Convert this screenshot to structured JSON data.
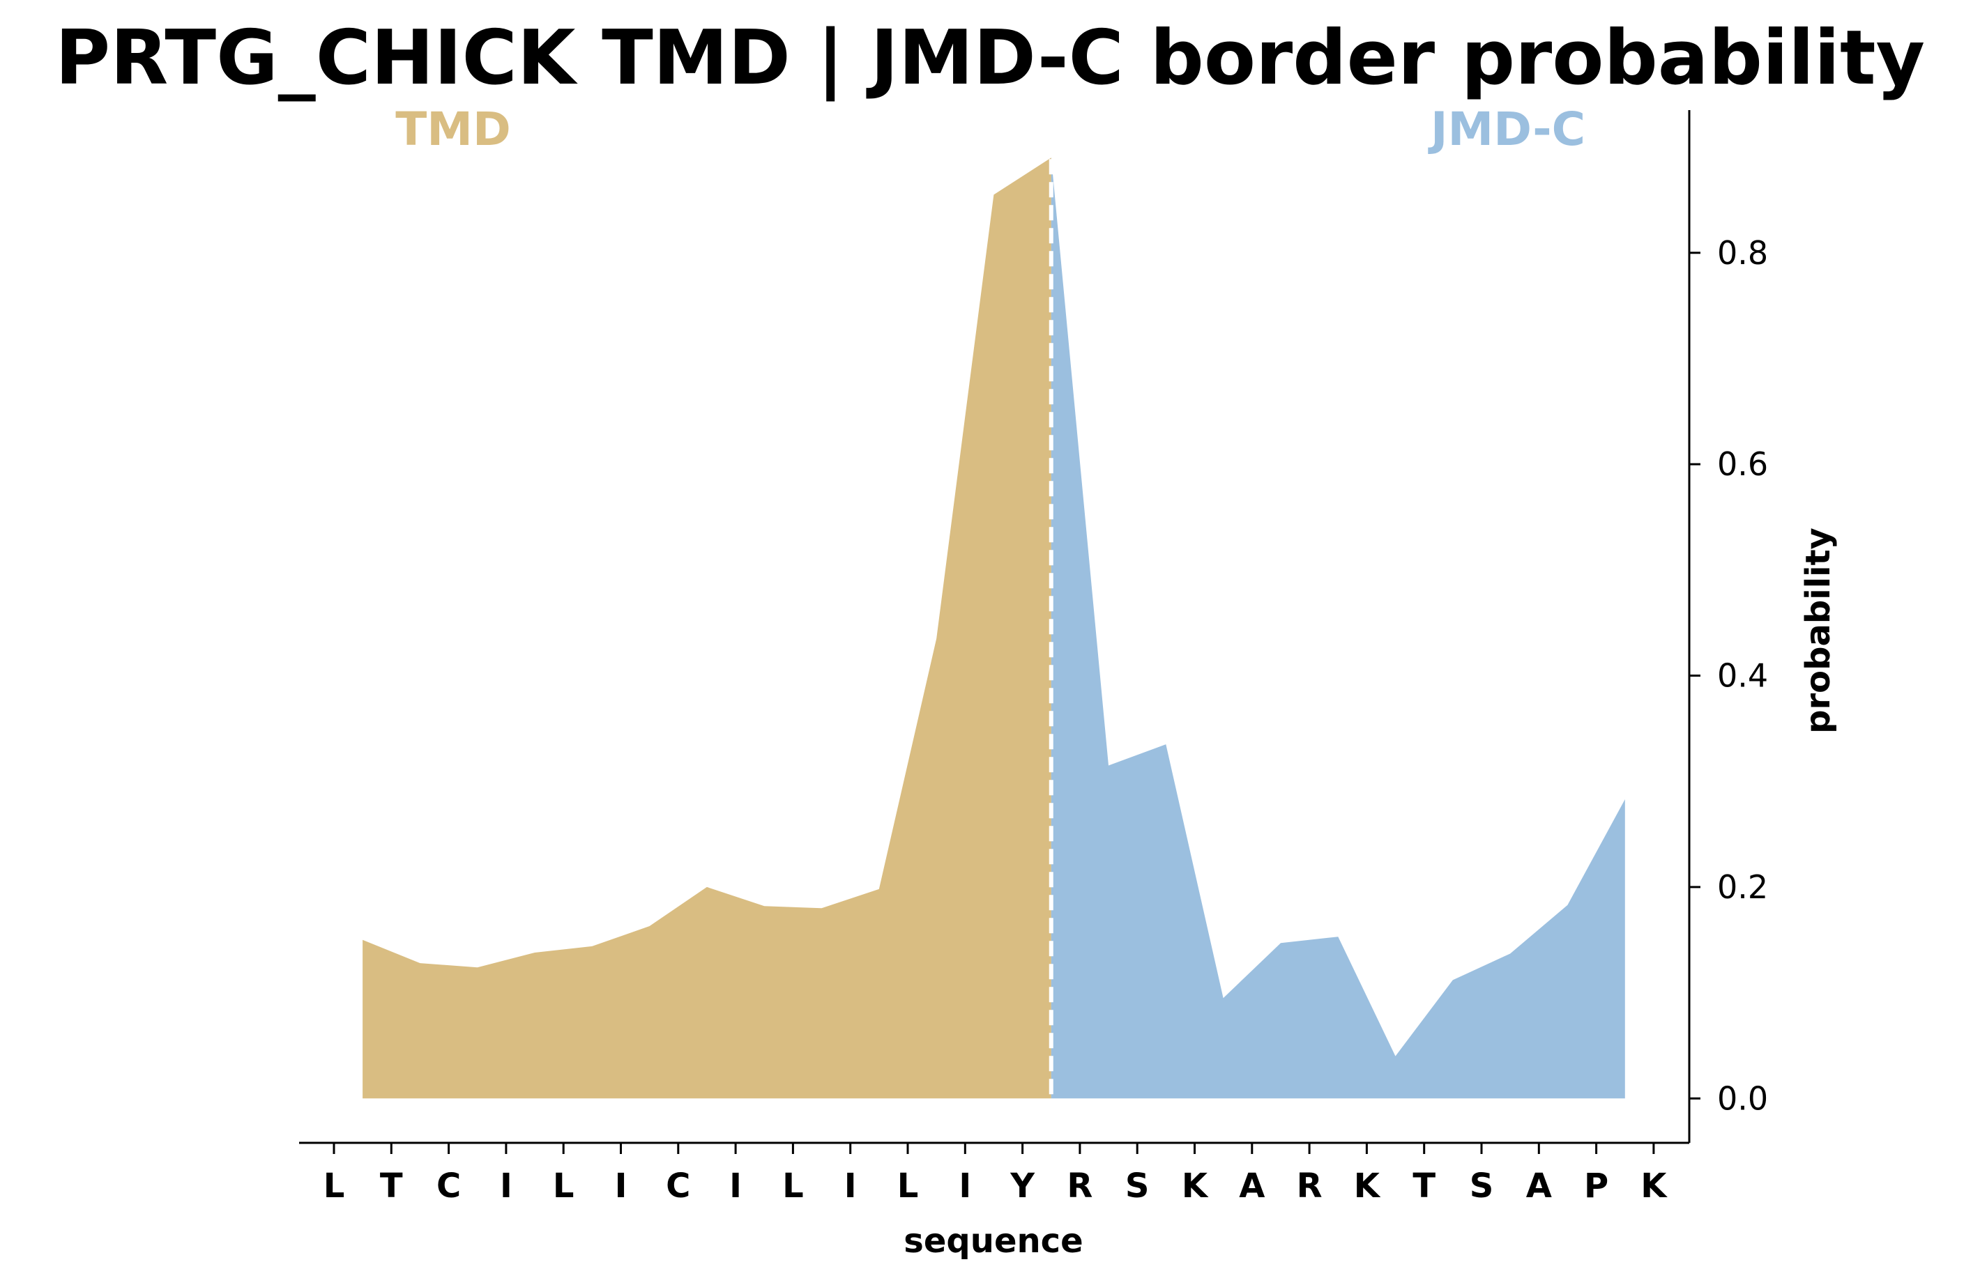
{
  "chart_data": {
    "type": "area",
    "title": "PRTG_CHICK TMD | JMD-C border probability",
    "xlabel": "sequence",
    "ylabel": "probability",
    "ylim": [
      -0.042,
      0.935
    ],
    "yticks": [
      "0.0",
      "0.2",
      "0.4",
      "0.6",
      "0.8"
    ],
    "ytick_values": [
      0.0,
      0.2,
      0.4,
      0.6,
      0.8
    ],
    "y_axis_side": "right",
    "sequence": [
      "L",
      "T",
      "C",
      "I",
      "L",
      "I",
      "C",
      "I",
      "L",
      "I",
      "L",
      "I",
      "Y",
      "R",
      "S",
      "K",
      "A",
      "R",
      "K",
      "T",
      "S",
      "A",
      "P",
      "K"
    ],
    "border_position": 12.5,
    "series": [
      {
        "name": "TMD",
        "color": "#d9bd82",
        "x": [
          0.5,
          1.5,
          2.5,
          3.5,
          4.5,
          5.5,
          6.5,
          7.5,
          8.5,
          9.5,
          10.5,
          11.5,
          12.5
        ],
        "values": [
          0.15,
          0.128,
          0.124,
          0.138,
          0.144,
          0.163,
          0.2,
          0.182,
          0.18,
          0.198,
          0.435,
          0.855,
          0.89
        ]
      },
      {
        "name": "JMD-C",
        "color": "#9bbfdf",
        "x": [
          12.5,
          13.5,
          14.5,
          15.5,
          16.5,
          17.5,
          18.5,
          19.5,
          20.5,
          21.5,
          22.5
        ],
        "values": [
          0.89,
          0.315,
          0.335,
          0.095,
          0.147,
          0.153,
          0.04,
          0.112,
          0.137,
          0.183,
          0.283
        ]
      }
    ],
    "region_labels": [
      {
        "text": "TMD",
        "color": "#d9bd82"
      },
      {
        "text": "JMD-C",
        "color": "#9bbfdf"
      }
    ]
  }
}
